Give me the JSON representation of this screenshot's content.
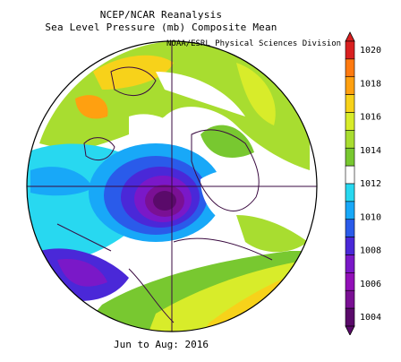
{
  "title_line1": "NCEP/NCAR Reanalysis",
  "title_line2": "Sea Level Pressure (mb) Composite Mean",
  "credit": "NOAA/ESRL Physical Sciences Division",
  "date_range": "Jun to Aug: 2016",
  "colorbar": {
    "ticks": [
      "1020",
      "1018",
      "1016",
      "1014",
      "1012",
      "1010",
      "1008",
      "1006",
      "1004"
    ],
    "colors": [
      "#d92020",
      "#ff7a10",
      "#ffa010",
      "#f7d21a",
      "#d8ec2a",
      "#a8dd30",
      "#78c830",
      "#ffffff",
      "#28d8f0",
      "#18a8f8",
      "#2a5bea",
      "#4a28d8",
      "#7a18c8",
      "#9210b8",
      "#7a1094",
      "#5a0a6a"
    ]
  }
}
